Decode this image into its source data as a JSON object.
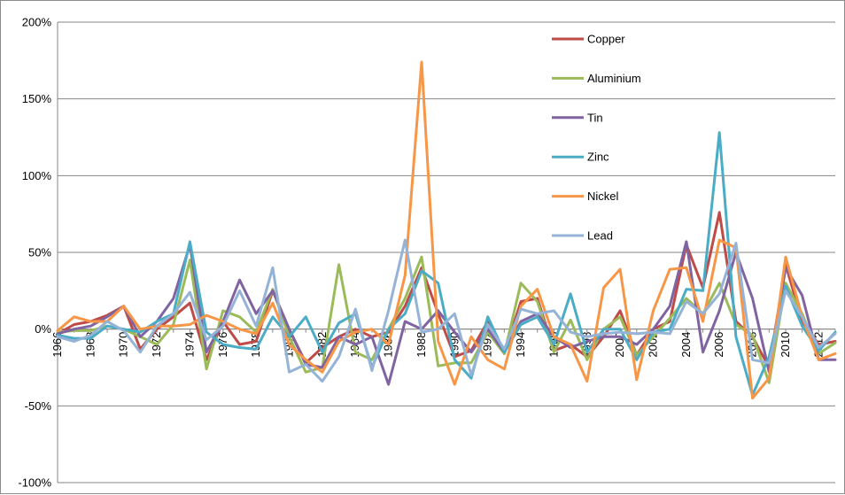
{
  "chart_data": {
    "type": "line",
    "title": "",
    "xlabel": "",
    "ylabel": "",
    "x": [
      1966,
      1967,
      1968,
      1969,
      1970,
      1971,
      1972,
      1973,
      1974,
      1975,
      1976,
      1977,
      1978,
      1979,
      1980,
      1981,
      1982,
      1983,
      1984,
      1985,
      1986,
      1987,
      1988,
      1989,
      1990,
      1991,
      1992,
      1993,
      1994,
      1995,
      1996,
      1997,
      1998,
      1999,
      2000,
      2001,
      2002,
      2003,
      2004,
      2005,
      2006,
      2007,
      2008,
      2009,
      2010,
      2011,
      2012,
      2013
    ],
    "x_tick_labels": [
      "1966",
      "1968",
      "1970",
      "1972",
      "1974",
      "1976",
      "1978",
      "1980",
      "1982",
      "1984",
      "1986",
      "1988",
      "1990",
      "1992",
      "1994",
      "1996",
      "1998",
      "2000",
      "2002",
      "2004",
      "2006",
      "2008",
      "2010",
      "2012"
    ],
    "ylim": [
      -1.0,
      2.0
    ],
    "y_ticks": [
      -1.0,
      -0.5,
      0.0,
      0.5,
      1.0,
      1.5,
      2.0
    ],
    "y_tick_labels": [
      "-100%",
      "-50%",
      "0%",
      "50%",
      "100%",
      "150%",
      "200%"
    ],
    "grid": "horizontal",
    "legend_position": "upper-right inside plot",
    "series": [
      {
        "name": "Copper",
        "color": "#be4b48",
        "values": [
          -0.03,
          0.03,
          0.05,
          0.09,
          0.15,
          -0.13,
          0.0,
          0.08,
          0.17,
          -0.2,
          0.05,
          -0.1,
          -0.08,
          0.25,
          0.0,
          -0.22,
          -0.12,
          -0.05,
          0.0,
          -0.05,
          -0.02,
          0.15,
          0.4,
          0.1,
          -0.18,
          -0.14,
          0.05,
          -0.16,
          0.18,
          0.2,
          -0.14,
          -0.1,
          -0.18,
          -0.05,
          0.12,
          -0.17,
          0.0,
          0.05,
          0.55,
          0.27,
          0.76,
          0.05,
          -0.05,
          -0.25,
          0.42,
          0.05,
          -0.1,
          -0.08
        ]
      },
      {
        "name": "Aluminium",
        "color": "#9bbb59",
        "values": [
          -0.02,
          -0.01,
          -0.01,
          0.02,
          0.0,
          -0.05,
          -0.1,
          0.03,
          0.45,
          -0.26,
          0.12,
          0.08,
          -0.02,
          0.26,
          -0.05,
          -0.28,
          -0.25,
          0.42,
          -0.15,
          -0.2,
          0.0,
          0.2,
          0.47,
          -0.24,
          -0.22,
          -0.22,
          -0.02,
          -0.16,
          0.3,
          0.18,
          -0.15,
          0.06,
          -0.2,
          0.0,
          0.08,
          -0.17,
          -0.05,
          0.07,
          0.2,
          0.1,
          0.3,
          0.03,
          -0.04,
          -0.35,
          0.3,
          0.1,
          -0.16,
          -0.09
        ]
      },
      {
        "name": "Tin",
        "color": "#8064a2",
        "values": [
          -0.03,
          0.0,
          0.02,
          0.08,
          0.15,
          -0.05,
          0.05,
          0.2,
          0.55,
          -0.15,
          0.05,
          0.32,
          0.1,
          0.25,
          0.0,
          -0.23,
          -0.25,
          -0.05,
          -0.1,
          -0.05,
          -0.36,
          0.05,
          0.0,
          0.12,
          -0.02,
          -0.15,
          0.0,
          -0.15,
          0.05,
          0.1,
          -0.05,
          -0.12,
          -0.08,
          -0.05,
          -0.05,
          -0.1,
          0.0,
          0.15,
          0.57,
          -0.15,
          0.12,
          0.5,
          0.2,
          -0.28,
          0.4,
          0.22,
          -0.2,
          -0.2
        ]
      },
      {
        "name": "Zinc",
        "color": "#4bacc6",
        "values": [
          -0.04,
          -0.06,
          -0.06,
          0.02,
          0.0,
          -0.02,
          0.05,
          0.1,
          0.57,
          -0.02,
          -0.1,
          -0.12,
          -0.13,
          0.08,
          -0.05,
          0.08,
          -0.15,
          0.04,
          0.1,
          -0.25,
          0.0,
          0.1,
          0.38,
          0.3,
          -0.2,
          -0.32,
          0.08,
          -0.15,
          0.03,
          0.08,
          -0.1,
          0.23,
          -0.15,
          0.0,
          0.0,
          -0.2,
          -0.02,
          0.0,
          0.26,
          0.25,
          1.28,
          -0.05,
          -0.43,
          -0.18,
          0.28,
          0.02,
          -0.14,
          -0.02
        ]
      },
      {
        "name": "Nickel",
        "color": "#f79646",
        "values": [
          -0.01,
          0.08,
          0.05,
          0.05,
          0.15,
          0.0,
          0.02,
          0.02,
          0.03,
          0.09,
          0.05,
          0.0,
          -0.03,
          0.17,
          -0.1,
          -0.2,
          -0.28,
          -0.08,
          -0.02,
          0.0,
          -0.1,
          0.35,
          1.74,
          -0.08,
          -0.36,
          -0.05,
          -0.2,
          -0.26,
          0.15,
          0.26,
          -0.05,
          -0.1,
          -0.34,
          0.27,
          0.39,
          -0.33,
          0.12,
          0.39,
          0.4,
          0.05,
          0.58,
          0.53,
          -0.45,
          -0.32,
          0.47,
          0.08,
          -0.2,
          -0.16
        ]
      },
      {
        "name": "Lead",
        "color": "#95b3d7",
        "values": [
          -0.05,
          -0.08,
          -0.04,
          0.05,
          -0.01,
          -0.15,
          0.02,
          0.1,
          0.24,
          -0.07,
          0.02,
          0.25,
          0.02,
          0.4,
          -0.28,
          -0.23,
          -0.34,
          -0.18,
          0.13,
          -0.27,
          0.12,
          0.58,
          -0.02,
          0.0,
          0.1,
          -0.3,
          0.03,
          -0.13,
          0.13,
          0.1,
          0.12,
          -0.02,
          -0.05,
          -0.03,
          -0.02,
          -0.03,
          -0.02,
          -0.03,
          0.18,
          0.1,
          0.23,
          0.56,
          -0.2,
          -0.22,
          0.25,
          0.08,
          -0.12,
          -0.03
        ]
      }
    ]
  }
}
